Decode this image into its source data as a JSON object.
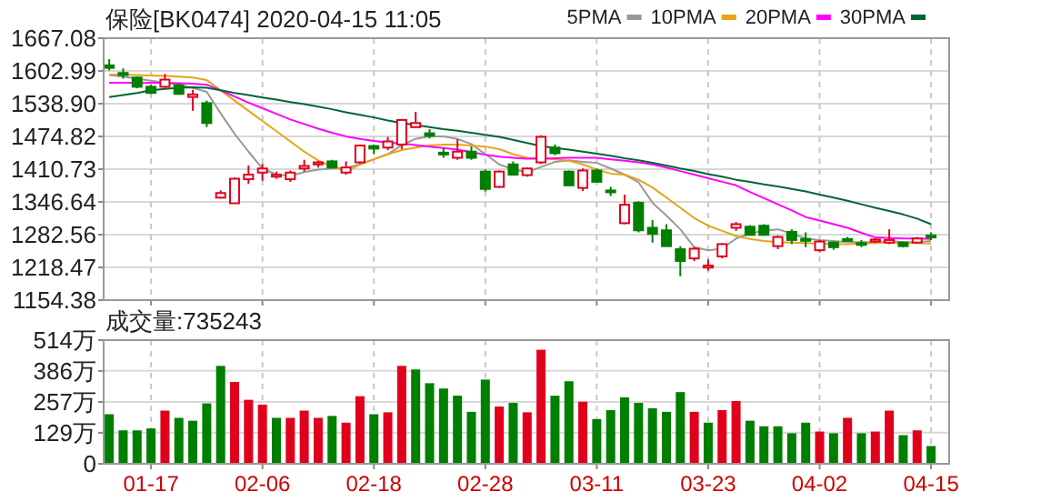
{
  "chart_data": [
    {
      "type": "candlestick",
      "title": "保险[BK0474] 2020-04-15 11:05",
      "categories": [
        null,
        null,
        null,
        null,
        null,
        null,
        null,
        null,
        null,
        null,
        null,
        null,
        null,
        null,
        null,
        null,
        null,
        null,
        null,
        null,
        null,
        null,
        null,
        null,
        null,
        null,
        null,
        null,
        null,
        null,
        null,
        null,
        null,
        null,
        null,
        null,
        null,
        null,
        null,
        null,
        null,
        null,
        null,
        null,
        null,
        null,
        null,
        null,
        null,
        null,
        null,
        null,
        null,
        null,
        null,
        null,
        null,
        null,
        null,
        null
      ],
      "ohlc": [
        [
          1614,
          1626,
          1604,
          1609
        ],
        [
          1599,
          1608,
          1588,
          1595
        ],
        [
          1590,
          1592,
          1569,
          1572
        ],
        [
          1572,
          1576,
          1558,
          1560
        ],
        [
          1572,
          1597,
          1570,
          1586
        ],
        [
          1575,
          1578,
          1557,
          1558
        ],
        [
          1552,
          1566,
          1525,
          1557
        ],
        [
          1540,
          1545,
          1493,
          1501
        ],
        [
          1355,
          1369,
          1353,
          1364
        ],
        [
          1344,
          1394,
          1343,
          1392
        ],
        [
          1391,
          1418,
          1382,
          1400
        ],
        [
          1404,
          1421,
          1388,
          1412
        ],
        [
          1396,
          1406,
          1392,
          1400
        ],
        [
          1391,
          1408,
          1386,
          1404
        ],
        [
          1412,
          1429,
          1406,
          1417
        ],
        [
          1420,
          1427,
          1414,
          1424
        ],
        [
          1426,
          1429,
          1412,
          1414
        ],
        [
          1404,
          1426,
          1400,
          1414
        ],
        [
          1424,
          1459,
          1421,
          1457
        ],
        [
          1456,
          1459,
          1440,
          1451
        ],
        [
          1453,
          1474,
          1448,
          1465
        ],
        [
          1459,
          1509,
          1450,
          1507
        ],
        [
          1493,
          1523,
          1493,
          1501
        ],
        [
          1481,
          1489,
          1471,
          1476
        ],
        [
          1443,
          1452,
          1433,
          1440
        ],
        [
          1433,
          1469,
          1429,
          1445
        ],
        [
          1445,
          1455,
          1429,
          1433
        ],
        [
          1406,
          1410,
          1367,
          1372
        ],
        [
          1376,
          1408,
          1374,
          1406
        ],
        [
          1420,
          1426,
          1398,
          1400
        ],
        [
          1399,
          1414,
          1396,
          1412
        ],
        [
          1424,
          1477,
          1421,
          1474
        ],
        [
          1453,
          1459,
          1438,
          1442
        ],
        [
          1406,
          1408,
          1379,
          1379
        ],
        [
          1374,
          1412,
          1368,
          1408
        ],
        [
          1408,
          1412,
          1385,
          1386
        ],
        [
          1369,
          1376,
          1358,
          1367
        ],
        [
          1305,
          1361,
          1303,
          1341
        ],
        [
          1345,
          1348,
          1287,
          1291
        ],
        [
          1296,
          1311,
          1267,
          1284
        ],
        [
          1291,
          1303,
          1260,
          1260
        ],
        [
          1254,
          1260,
          1201,
          1231
        ],
        [
          1236,
          1258,
          1231,
          1255
        ],
        [
          1218,
          1234,
          1212,
          1222
        ],
        [
          1240,
          1266,
          1236,
          1264
        ],
        [
          1296,
          1307,
          1290,
          1303
        ],
        [
          1298,
          1301,
          1281,
          1282
        ],
        [
          1300,
          1303,
          1281,
          1282
        ],
        [
          1260,
          1281,
          1254,
          1278
        ],
        [
          1288,
          1293,
          1264,
          1272
        ],
        [
          1274,
          1287,
          1258,
          1272
        ],
        [
          1252,
          1272,
          1248,
          1269
        ],
        [
          1267,
          1269,
          1253,
          1258
        ],
        [
          1274,
          1278,
          1269,
          1272
        ],
        [
          1266,
          1272,
          1258,
          1264
        ],
        [
          1269,
          1275,
          1267,
          1273
        ],
        [
          1267,
          1293,
          1264,
          1272
        ],
        [
          1267,
          1269,
          1258,
          1260
        ],
        [
          1267,
          1278,
          1265,
          1275
        ],
        [
          1281,
          1287,
          1272,
          1277
        ]
      ],
      "colors": [
        "#007f00",
        "#007f00",
        "#007f00",
        "#007f00",
        "#e0001b",
        "#007f00",
        "#e0001b",
        "#007f00",
        "#e0001b",
        "#e0001b",
        "#e0001b",
        "#e0001b",
        "#e0001b",
        "#e0001b",
        "#e0001b",
        "#e0001b",
        "#007f00",
        "#e0001b",
        "#e0001b",
        "#007f00",
        "#e0001b",
        "#e0001b",
        "#e0001b",
        "#007f00",
        "#007f00",
        "#e0001b",
        "#007f00",
        "#007f00",
        "#e0001b",
        "#007f00",
        "#e0001b",
        "#e0001b",
        "#007f00",
        "#007f00",
        "#e0001b",
        "#007f00",
        "#007f00",
        "#e0001b",
        "#007f00",
        "#007f00",
        "#007f00",
        "#007f00",
        "#e0001b",
        "#e0001b",
        "#e0001b",
        "#e0001b",
        "#007f00",
        "#007f00",
        "#e0001b",
        "#007f00",
        "#007f00",
        "#e0001b",
        "#007f00",
        "#007f00",
        "#007f00",
        "#e0001b",
        "#e0001b",
        "#007f00",
        "#e0001b",
        "#007f00"
      ],
      "series": [
        {
          "name": "5PMA",
          "type": "line",
          "color": "#999999",
          "values": [
            1595,
            1592,
            1588,
            1584,
            1580,
            1576,
            1570,
            1562,
            1520,
            1480,
            1445,
            1412,
            1400,
            1398,
            1405,
            1410,
            1412,
            1413,
            1420,
            1430,
            1440,
            1458,
            1470,
            1475,
            1475,
            1470,
            1460,
            1440,
            1420,
            1410,
            1405,
            1415,
            1425,
            1428,
            1425,
            1423,
            1412,
            1400,
            1385,
            1345,
            1320,
            1293,
            1258,
            1252,
            1255,
            1275,
            1285,
            1290,
            1293,
            1285,
            1275,
            1272,
            1270,
            1268,
            1268,
            1268,
            1270,
            1268,
            1268,
            1270
          ]
        },
        {
          "name": "10PMA",
          "type": "line",
          "color": "#e8a317",
          "values": [
            1596,
            1596,
            1595,
            1594,
            1593,
            1592,
            1590,
            1585,
            1565,
            1545,
            1525,
            1505,
            1485,
            1465,
            1445,
            1428,
            1416,
            1406,
            1420,
            1430,
            1440,
            1448,
            1453,
            1457,
            1459,
            1459,
            1457,
            1455,
            1450,
            1440,
            1433,
            1432,
            1430,
            1427,
            1420,
            1410,
            1402,
            1400,
            1390,
            1375,
            1355,
            1335,
            1315,
            1300,
            1290,
            1280,
            1274,
            1270,
            1268,
            1267,
            1266,
            1265,
            1264,
            1264,
            1265,
            1266,
            1267,
            1266,
            1266,
            1265
          ]
        },
        {
          "name": "20PMA",
          "type": "line",
          "color": "#ff00ff",
          "values": [
            1580,
            1580,
            1580,
            1580,
            1580,
            1579,
            1578,
            1576,
            1565,
            1553,
            1541,
            1530,
            1519,
            1508,
            1499,
            1490,
            1482,
            1475,
            1470,
            1466,
            1463,
            1461,
            1458,
            1455,
            1452,
            1449,
            1444,
            1439,
            1435,
            1433,
            1431,
            1431,
            1432,
            1433,
            1433,
            1433,
            1430,
            1427,
            1424,
            1420,
            1414,
            1407,
            1400,
            1393,
            1386,
            1379,
            1366,
            1354,
            1342,
            1330,
            1317,
            1310,
            1303,
            1296,
            1286,
            1277,
            1276,
            1275,
            1275,
            1274
          ]
        },
        {
          "name": "30PMA",
          "type": "line",
          "color": "#006633",
          "values": [
            1552,
            1556,
            1560,
            1565,
            1568,
            1570,
            1571,
            1570,
            1565,
            1560,
            1556,
            1551,
            1547,
            1542,
            1538,
            1533,
            1528,
            1522,
            1517,
            1512,
            1506,
            1501,
            1497,
            1493,
            1489,
            1486,
            1482,
            1478,
            1474,
            1468,
            1462,
            1456,
            1452,
            1449,
            1445,
            1441,
            1437,
            1432,
            1428,
            1423,
            1418,
            1412,
            1407,
            1401,
            1396,
            1390,
            1386,
            1381,
            1377,
            1372,
            1367,
            1361,
            1355,
            1349,
            1342,
            1335,
            1329,
            1322,
            1314,
            1303
          ]
        }
      ],
      "ylim": [
        1154.38,
        1667.08
      ],
      "yticks": [
        1154.38,
        1218.47,
        1282.56,
        1346.64,
        1410.73,
        1474.82,
        {
          "value": 1538.9,
          "label": "1538.90"
        },
        1602.99,
        1667.08
      ],
      "legend": "top right",
      "grid": true,
      "tick_labels": "y"
    },
    {
      "type": "bar",
      "title": "成交量:735243",
      "categories": [
        null,
        null,
        null,
        "01-17",
        null,
        null,
        null,
        null,
        null,
        null,
        null,
        "02-06",
        null,
        null,
        null,
        null,
        null,
        null,
        null,
        "02-18",
        null,
        null,
        null,
        null,
        null,
        null,
        null,
        "02-28",
        null,
        null,
        null,
        null,
        null,
        null,
        null,
        "03-11",
        null,
        null,
        null,
        null,
        null,
        null,
        null,
        "03-23",
        null,
        null,
        null,
        null,
        null,
        null,
        null,
        "04-02",
        null,
        null,
        null,
        null,
        null,
        null,
        null,
        "04-15"
      ],
      "values": [
        206,
        139,
        139,
        147,
        221,
        191,
        179,
        251,
        407,
        340,
        266,
        246,
        191,
        191,
        221,
        191,
        199,
        171,
        281,
        206,
        214,
        407,
        392,
        335,
        313,
        283,
        216,
        350,
        238,
        253,
        214,
        474,
        283,
        343,
        258,
        186,
        223,
        276,
        253,
        231,
        216,
        298,
        216,
        171,
        223,
        261,
        179,
        156,
        156,
        127,
        171,
        134,
        127,
        191,
        127,
        134,
        221,
        119,
        139,
        74
      ],
      "colors": [
        "#007f00",
        "#007f00",
        "#007f00",
        "#007f00",
        "#e0001b",
        "#007f00",
        "#007f00",
        "#007f00",
        "#007f00",
        "#e0001b",
        "#e0001b",
        "#e0001b",
        "#007f00",
        "#e0001b",
        "#e0001b",
        "#e0001b",
        "#007f00",
        "#e0001b",
        "#e0001b",
        "#007f00",
        "#e0001b",
        "#e0001b",
        "#007f00",
        "#007f00",
        "#007f00",
        "#007f00",
        "#007f00",
        "#007f00",
        "#e0001b",
        "#007f00",
        "#e0001b",
        "#e0001b",
        "#007f00",
        "#007f00",
        "#e0001b",
        "#007f00",
        "#007f00",
        "#007f00",
        "#007f00",
        "#007f00",
        "#007f00",
        "#007f00",
        "#e0001b",
        "#007f00",
        "#e0001b",
        "#e0001b",
        "#007f00",
        "#007f00",
        "#007f00",
        "#007f00",
        "#007f00",
        "#e0001b",
        "#007f00",
        "#e0001b",
        "#007f00",
        "#e0001b",
        "#e0001b",
        "#007f00",
        "#e0001b",
        "#007f00"
      ],
      "ylim": [
        0,
        514
      ],
      "yticks": [
        0,
        {
          "value": 129,
          "label": "129万"
        },
        {
          "value": 257,
          "label": "257万"
        },
        {
          "value": 386,
          "label": "386万"
        },
        {
          "value": 514,
          "label": "514万"
        }
      ],
      "grid": true
    }
  ]
}
